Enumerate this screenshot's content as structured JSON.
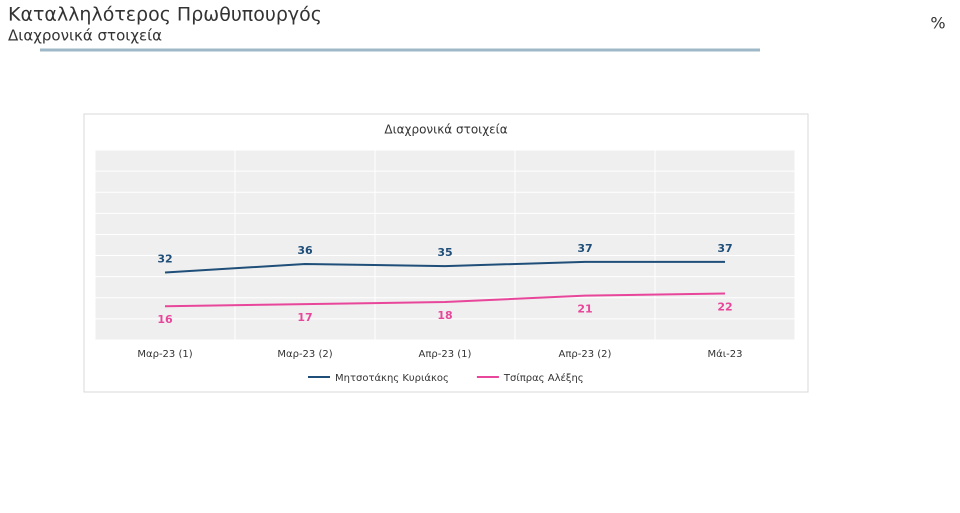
{
  "header": {
    "title": "Καταλληλότερος Πρωθυπουργός",
    "subtitle": "Διαχρονικά στοιχεία",
    "unit": "%"
  },
  "chart_data": {
    "type": "line",
    "title": "Διαχρονικά στοιχεία",
    "categories": [
      "Μαρ-23 (1)",
      "Μαρ-23 (2)",
      "Απρ-23 (1)",
      "Απρ-23 (2)",
      "Μάι-23"
    ],
    "series": [
      {
        "name": "Μητσοτάκης Κυριάκος",
        "color": "#1f4e79",
        "values": [
          32,
          36,
          35,
          37,
          37
        ]
      },
      {
        "name": "Τσίπρας Αλέξης",
        "color": "#e8469a",
        "values": [
          16,
          17,
          18,
          21,
          22
        ]
      }
    ],
    "ylim": [
      0,
      90
    ],
    "yticks": [
      0,
      10,
      20,
      30,
      40,
      50,
      60,
      70,
      80,
      90
    ],
    "grid": true,
    "legend": "bottom"
  }
}
